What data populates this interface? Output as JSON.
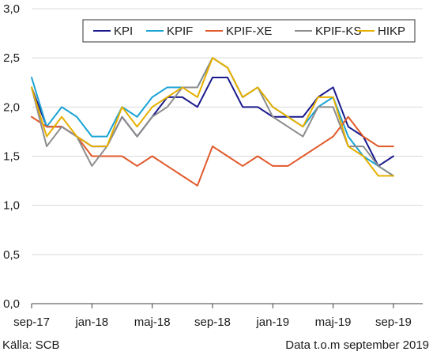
{
  "chart_data": {
    "type": "line",
    "x": [
      "sep-17",
      "okt-17",
      "nov-17",
      "dec-17",
      "jan-18",
      "feb-18",
      "mar-18",
      "apr-18",
      "maj-18",
      "jun-18",
      "jul-18",
      "aug-18",
      "sep-18",
      "okt-18",
      "nov-18",
      "dec-18",
      "jan-19",
      "feb-19",
      "mar-19",
      "apr-19",
      "maj-19",
      "jun-19",
      "jul-19",
      "aug-19",
      "sep-19"
    ],
    "x_tick_labels": [
      "sep-17",
      "jan-18",
      "maj-18",
      "sep-18",
      "jan-19",
      "maj-19",
      "sep-19"
    ],
    "y_tick_labels": [
      "0,0",
      "0,5",
      "1,0",
      "1,5",
      "2,0",
      "2,5",
      "3,0"
    ],
    "ylim": [
      0,
      3
    ],
    "grid": "horizontal",
    "legend_position": "top-right",
    "series": [
      {
        "name": "KPI",
        "color": "#1a1a8c",
        "values": [
          2.2,
          1.8,
          1.8,
          1.7,
          1.6,
          1.6,
          1.9,
          1.7,
          1.9,
          2.1,
          2.1,
          2.0,
          2.3,
          2.3,
          2.0,
          2.0,
          1.9,
          1.9,
          1.9,
          2.1,
          2.2,
          1.8,
          1.7,
          1.4,
          1.5
        ]
      },
      {
        "name": "KPIF",
        "color": "#1aa3d4",
        "values": [
          2.3,
          1.8,
          2.0,
          1.9,
          1.7,
          1.7,
          2.0,
          1.9,
          2.1,
          2.2,
          2.2,
          2.2,
          2.5,
          2.4,
          2.1,
          2.2,
          2.0,
          1.9,
          1.8,
          2.0,
          2.1,
          1.7,
          1.5,
          1.4,
          1.3
        ]
      },
      {
        "name": "KPIF-XE",
        "color": "#e05a2b",
        "values": [
          1.9,
          1.8,
          1.8,
          1.7,
          1.5,
          1.5,
          1.5,
          1.4,
          1.5,
          1.4,
          1.3,
          1.2,
          1.6,
          1.5,
          1.4,
          1.5,
          1.4,
          1.4,
          1.5,
          1.6,
          1.7,
          1.9,
          1.7,
          1.6,
          1.6
        ]
      },
      {
        "name": "KPIF-KS",
        "color": "#8c8c8c",
        "values": [
          2.2,
          1.6,
          1.8,
          1.7,
          1.4,
          1.6,
          1.9,
          1.7,
          1.9,
          2.0,
          2.2,
          2.2,
          2.5,
          2.4,
          2.1,
          2.2,
          1.9,
          1.8,
          1.7,
          2.0,
          2.0,
          1.6,
          1.6,
          1.4,
          1.3
        ]
      },
      {
        "name": "HIKP",
        "color": "#e6b000",
        "values": [
          2.2,
          1.7,
          1.9,
          1.7,
          1.6,
          1.6,
          2.0,
          1.8,
          2.0,
          2.1,
          2.2,
          2.1,
          2.5,
          2.4,
          2.1,
          2.2,
          2.0,
          1.9,
          1.8,
          2.1,
          2.1,
          1.6,
          1.5,
          1.3,
          1.3
        ]
      }
    ]
  },
  "footer": {
    "source": "Källa: SCB",
    "data_note": "Data t.o.m september 2019"
  }
}
